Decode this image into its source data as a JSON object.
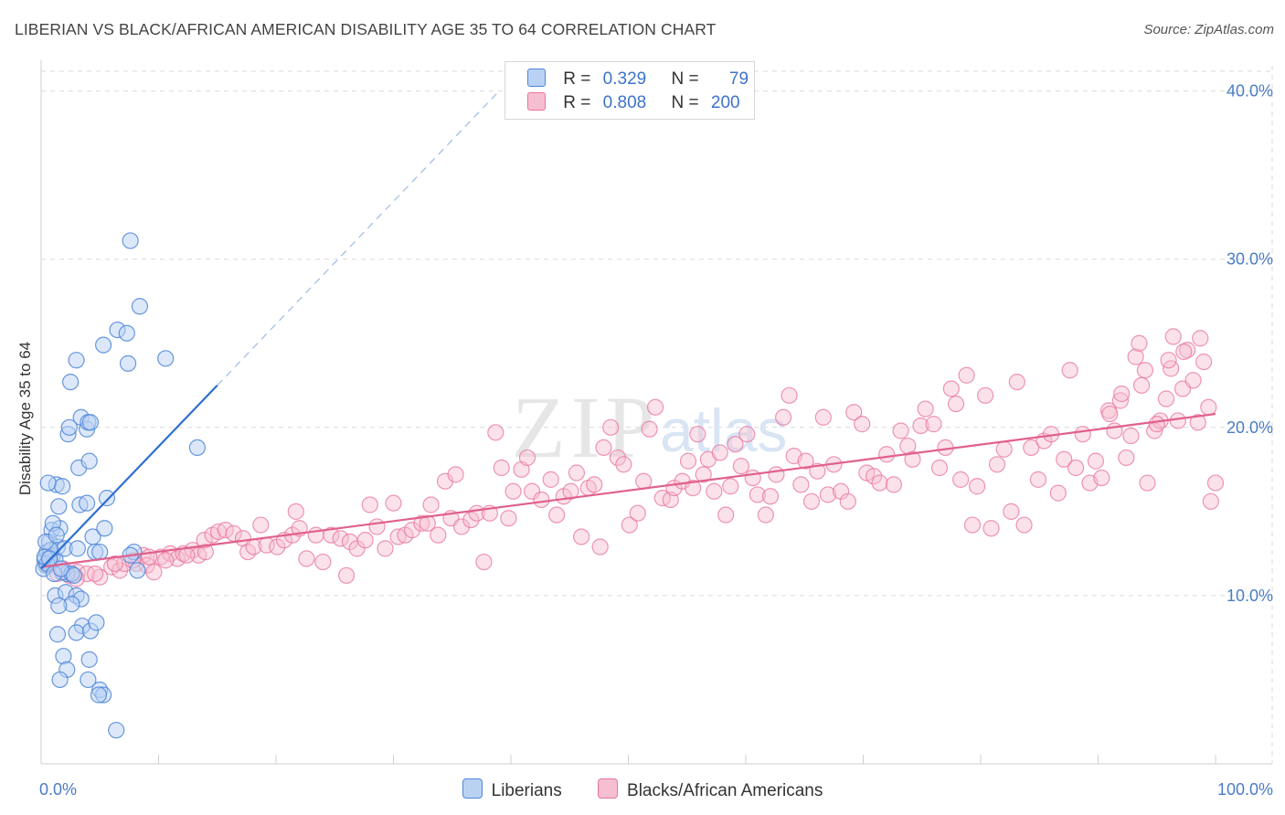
{
  "title": "LIBERIAN VS BLACK/AFRICAN AMERICAN DISABILITY AGE 35 TO 64 CORRELATION CHART",
  "source": "Source: ZipAtlas.com",
  "watermark": {
    "zip": "ZIP",
    "atlas": "atlas"
  },
  "colors": {
    "liberians": "#4f86d8",
    "liberians_fill": "#b9d2f3",
    "blacks": "#e8739b",
    "blacks_fill": "#f6bfd1",
    "grid": "#d9d9d9",
    "tick_text": "#4a7cc7"
  },
  "legend": {
    "rows": [
      {
        "r_label": "R =",
        "r_value": "0.329",
        "n_label": "N =",
        "n_value": "79"
      },
      {
        "r_label": "R =",
        "r_value": "0.808",
        "n_label": "N =",
        "n_value": "200"
      }
    ],
    "bottom": [
      "Liberians",
      "Blacks/African Americans"
    ]
  },
  "chart_data": {
    "type": "scatter",
    "title": "LIBERIAN VS BLACK/AFRICAN AMERICAN DISABILITY AGE 35 TO 64 CORRELATION CHART",
    "xlabel": "",
    "ylabel": "Disability Age 35 to 64",
    "xlim": [
      0,
      100
    ],
    "ylim": [
      0,
      41.5
    ],
    "x_tick_labels": [
      "0.0%",
      "100.0%"
    ],
    "y_ticks": [
      10,
      20,
      30,
      40
    ],
    "y_tick_labels": [
      "10.0%",
      "20.0%",
      "30.0%",
      "40.0%"
    ],
    "series": [
      {
        "name": "Liberians",
        "r": 0.329,
        "n": 79,
        "trendline": {
          "x": [
            0,
            15
          ],
          "y": [
            11.6,
            22.5
          ],
          "extended_to_x": 39,
          "extended_to_y": 40
        },
        "points": [
          [
            0.3,
            12.1
          ],
          [
            0.5,
            12.6
          ],
          [
            0.4,
            11.8
          ],
          [
            0.8,
            12.3
          ],
          [
            0.6,
            12.0
          ],
          [
            1.0,
            12.4
          ],
          [
            0.2,
            11.6
          ],
          [
            1.2,
            12.2
          ],
          [
            0.7,
            13.2
          ],
          [
            0.9,
            13.9
          ],
          [
            1.4,
            12.9
          ],
          [
            1.6,
            14.0
          ],
          [
            2.0,
            12.8
          ],
          [
            2.2,
            11.3
          ],
          [
            1.8,
            11.4
          ],
          [
            2.6,
            11.3
          ],
          [
            3.1,
            12.8
          ],
          [
            4.4,
            13.5
          ],
          [
            4.6,
            12.6
          ],
          [
            5.0,
            12.6
          ],
          [
            3.3,
            15.4
          ],
          [
            3.2,
            17.6
          ],
          [
            3.9,
            15.5
          ],
          [
            1.3,
            16.6
          ],
          [
            1.8,
            16.5
          ],
          [
            0.6,
            16.7
          ],
          [
            1.5,
            15.3
          ],
          [
            5.6,
            15.8
          ],
          [
            4.1,
            18.0
          ],
          [
            2.3,
            19.6
          ],
          [
            2.4,
            20.0
          ],
          [
            3.4,
            20.6
          ],
          [
            3.9,
            19.9
          ],
          [
            4.0,
            20.3
          ],
          [
            4.2,
            20.3
          ],
          [
            2.5,
            22.7
          ],
          [
            3.0,
            24.0
          ],
          [
            5.3,
            24.9
          ],
          [
            7.4,
            23.8
          ],
          [
            10.6,
            24.1
          ],
          [
            6.5,
            25.8
          ],
          [
            7.3,
            25.6
          ],
          [
            8.4,
            27.2
          ],
          [
            7.6,
            31.1
          ],
          [
            13.3,
            18.8
          ],
          [
            1.2,
            10.0
          ],
          [
            2.1,
            10.2
          ],
          [
            3.0,
            10.0
          ],
          [
            3.4,
            9.8
          ],
          [
            2.6,
            9.5
          ],
          [
            1.5,
            9.4
          ],
          [
            3.5,
            8.2
          ],
          [
            3.0,
            7.8
          ],
          [
            4.2,
            7.9
          ],
          [
            4.7,
            8.4
          ],
          [
            1.4,
            7.7
          ],
          [
            1.9,
            6.4
          ],
          [
            4.1,
            6.2
          ],
          [
            2.2,
            5.6
          ],
          [
            1.6,
            5.0
          ],
          [
            4.0,
            5.0
          ],
          [
            5.0,
            4.4
          ],
          [
            5.3,
            4.1
          ],
          [
            4.9,
            4.1
          ],
          [
            6.4,
            2.0
          ],
          [
            7.9,
            12.6
          ],
          [
            7.6,
            12.4
          ],
          [
            8.2,
            11.5
          ],
          [
            5.4,
            14.0
          ],
          [
            1.0,
            14.3
          ],
          [
            0.8,
            12.7
          ],
          [
            0.5,
            11.9
          ],
          [
            1.1,
            11.3
          ],
          [
            1.7,
            11.6
          ],
          [
            2.8,
            11.2
          ],
          [
            0.3,
            12.3
          ],
          [
            0.4,
            13.2
          ],
          [
            1.3,
            13.6
          ],
          [
            0.7,
            12.2
          ]
        ]
      },
      {
        "name": "Blacks/African Americans",
        "r": 0.808,
        "n": 200,
        "trendline": {
          "x": [
            0,
            100
          ],
          "y": [
            11.7,
            20.8
          ]
        },
        "points": [
          [
            0.6,
            11.8
          ],
          [
            1.4,
            11.3
          ],
          [
            2.4,
            11.2
          ],
          [
            3.1,
            11.4
          ],
          [
            3.9,
            11.3
          ],
          [
            5.0,
            11.1
          ],
          [
            6.0,
            11.7
          ],
          [
            6.7,
            11.5
          ],
          [
            7.1,
            11.9
          ],
          [
            8.1,
            11.9
          ],
          [
            8.7,
            12.4
          ],
          [
            9.0,
            11.8
          ],
          [
            9.6,
            11.4
          ],
          [
            10.2,
            12.3
          ],
          [
            11.0,
            12.5
          ],
          [
            11.6,
            12.2
          ],
          [
            12.1,
            12.5
          ],
          [
            12.9,
            12.7
          ],
          [
            13.4,
            12.4
          ],
          [
            14.0,
            12.6
          ],
          [
            1.9,
            11.6
          ],
          [
            3.0,
            11.0
          ],
          [
            4.6,
            11.3
          ],
          [
            6.3,
            11.9
          ],
          [
            7.8,
            12.1
          ],
          [
            9.2,
            12.3
          ],
          [
            10.6,
            12.1
          ],
          [
            12.4,
            12.4
          ],
          [
            13.9,
            13.3
          ],
          [
            14.6,
            13.6
          ],
          [
            15.1,
            13.8
          ],
          [
            15.7,
            13.9
          ],
          [
            16.4,
            13.7
          ],
          [
            17.2,
            13.4
          ],
          [
            17.6,
            12.6
          ],
          [
            18.1,
            12.9
          ],
          [
            18.7,
            14.2
          ],
          [
            19.2,
            13.0
          ],
          [
            20.1,
            12.9
          ],
          [
            20.7,
            13.3
          ],
          [
            21.4,
            13.6
          ],
          [
            21.7,
            15.0
          ],
          [
            22.0,
            14.0
          ],
          [
            22.6,
            12.2
          ],
          [
            23.4,
            13.6
          ],
          [
            24.0,
            12.0
          ],
          [
            24.7,
            13.6
          ],
          [
            25.5,
            13.4
          ],
          [
            26.0,
            11.2
          ],
          [
            26.3,
            13.2
          ],
          [
            26.9,
            12.8
          ],
          [
            27.6,
            13.3
          ],
          [
            28.0,
            15.4
          ],
          [
            28.6,
            14.1
          ],
          [
            29.3,
            12.8
          ],
          [
            30.0,
            15.5
          ],
          [
            30.4,
            13.5
          ],
          [
            31.0,
            13.6
          ],
          [
            31.6,
            13.9
          ],
          [
            32.4,
            14.3
          ],
          [
            32.9,
            14.3
          ],
          [
            33.2,
            15.4
          ],
          [
            33.8,
            13.6
          ],
          [
            34.4,
            16.8
          ],
          [
            34.9,
            14.6
          ],
          [
            35.3,
            17.2
          ],
          [
            35.8,
            14.1
          ],
          [
            36.6,
            14.5
          ],
          [
            37.1,
            14.9
          ],
          [
            37.7,
            12.0
          ],
          [
            38.2,
            14.9
          ],
          [
            38.7,
            19.7
          ],
          [
            39.2,
            17.6
          ],
          [
            39.8,
            14.6
          ],
          [
            40.2,
            16.2
          ],
          [
            40.9,
            17.5
          ],
          [
            41.4,
            18.2
          ],
          [
            41.8,
            16.2
          ],
          [
            42.6,
            15.7
          ],
          [
            43.4,
            16.9
          ],
          [
            43.9,
            14.8
          ],
          [
            44.5,
            15.9
          ],
          [
            45.1,
            16.2
          ],
          [
            45.6,
            17.3
          ],
          [
            46.0,
            13.5
          ],
          [
            46.6,
            16.4
          ],
          [
            47.1,
            16.6
          ],
          [
            47.6,
            12.9
          ],
          [
            47.9,
            18.8
          ],
          [
            48.5,
            20.0
          ],
          [
            49.1,
            18.2
          ],
          [
            49.6,
            17.8
          ],
          [
            50.1,
            14.2
          ],
          [
            50.8,
            14.9
          ],
          [
            51.3,
            16.8
          ],
          [
            51.8,
            19.9
          ],
          [
            52.3,
            21.2
          ],
          [
            52.9,
            15.8
          ],
          [
            53.6,
            15.7
          ],
          [
            53.9,
            16.4
          ],
          [
            54.6,
            16.8
          ],
          [
            55.1,
            18.0
          ],
          [
            55.5,
            16.4
          ],
          [
            55.9,
            19.6
          ],
          [
            56.4,
            17.2
          ],
          [
            56.8,
            18.1
          ],
          [
            57.3,
            16.2
          ],
          [
            57.8,
            18.5
          ],
          [
            58.3,
            14.8
          ],
          [
            58.7,
            16.5
          ],
          [
            59.1,
            19.0
          ],
          [
            59.6,
            17.7
          ],
          [
            60.1,
            19.6
          ],
          [
            60.6,
            17.0
          ],
          [
            61.0,
            16.0
          ],
          [
            61.7,
            14.8
          ],
          [
            62.1,
            15.9
          ],
          [
            62.6,
            17.2
          ],
          [
            63.2,
            20.6
          ],
          [
            63.7,
            21.9
          ],
          [
            64.1,
            18.3
          ],
          [
            64.7,
            16.6
          ],
          [
            65.1,
            18.0
          ],
          [
            65.6,
            15.6
          ],
          [
            66.1,
            17.4
          ],
          [
            66.6,
            20.6
          ],
          [
            67.0,
            16.0
          ],
          [
            67.5,
            17.8
          ],
          [
            68.1,
            16.2
          ],
          [
            68.7,
            15.6
          ],
          [
            69.2,
            20.9
          ],
          [
            69.9,
            20.2
          ],
          [
            70.3,
            17.3
          ],
          [
            70.9,
            17.1
          ],
          [
            71.4,
            16.7
          ],
          [
            72.0,
            18.4
          ],
          [
            72.6,
            16.6
          ],
          [
            73.2,
            19.8
          ],
          [
            73.8,
            18.9
          ],
          [
            74.2,
            18.1
          ],
          [
            74.9,
            20.1
          ],
          [
            75.3,
            21.1
          ],
          [
            76.0,
            20.2
          ],
          [
            76.5,
            17.6
          ],
          [
            77.0,
            18.8
          ],
          [
            77.5,
            22.3
          ],
          [
            77.9,
            21.4
          ],
          [
            78.3,
            16.9
          ],
          [
            78.8,
            23.1
          ],
          [
            79.3,
            14.2
          ],
          [
            79.7,
            16.5
          ],
          [
            80.4,
            21.9
          ],
          [
            80.9,
            14.0
          ],
          [
            81.4,
            17.8
          ],
          [
            82.0,
            18.7
          ],
          [
            82.6,
            15.0
          ],
          [
            83.1,
            22.7
          ],
          [
            83.7,
            14.2
          ],
          [
            84.3,
            18.8
          ],
          [
            84.9,
            16.9
          ],
          [
            85.4,
            19.2
          ],
          [
            86.0,
            19.6
          ],
          [
            86.6,
            16.1
          ],
          [
            87.1,
            18.1
          ],
          [
            87.6,
            23.4
          ],
          [
            88.1,
            17.6
          ],
          [
            88.7,
            19.6
          ],
          [
            89.3,
            16.7
          ],
          [
            89.8,
            18.0
          ],
          [
            90.3,
            17.0
          ],
          [
            90.9,
            21.0
          ],
          [
            91.4,
            19.8
          ],
          [
            91.9,
            21.6
          ],
          [
            92.4,
            18.2
          ],
          [
            92.8,
            19.5
          ],
          [
            93.2,
            24.2
          ],
          [
            93.7,
            22.5
          ],
          [
            94.2,
            16.7
          ],
          [
            94.8,
            19.8
          ],
          [
            95.3,
            20.4
          ],
          [
            95.8,
            21.7
          ],
          [
            96.2,
            23.5
          ],
          [
            96.8,
            20.4
          ],
          [
            97.2,
            22.3
          ],
          [
            97.6,
            24.6
          ],
          [
            98.1,
            22.8
          ],
          [
            98.5,
            20.3
          ],
          [
            99.0,
            23.9
          ],
          [
            99.4,
            21.2
          ],
          [
            100.0,
            16.7
          ],
          [
            96.4,
            25.4
          ],
          [
            97.3,
            24.5
          ],
          [
            98.7,
            25.3
          ],
          [
            99.6,
            15.6
          ],
          [
            96.0,
            24.0
          ],
          [
            95.0,
            20.2
          ],
          [
            94.0,
            23.4
          ],
          [
            93.5,
            25.0
          ],
          [
            92.0,
            22.0
          ],
          [
            91.0,
            20.8
          ]
        ]
      }
    ],
    "legend_position": "top-center"
  }
}
